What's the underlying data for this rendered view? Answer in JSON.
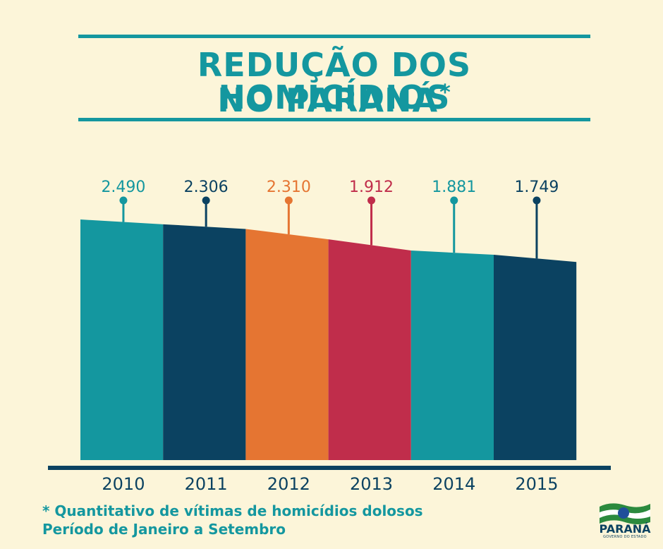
{
  "header": {
    "title_line1": "REDUÇÃO DOS HOMICÍDIOS",
    "title_line2": "NO PARANÁ",
    "title_marker": "*"
  },
  "chart_data": {
    "type": "bar",
    "title": "REDUÇÃO DOS HOMICÍDIOS NO PARANÁ*",
    "categories": [
      "2010",
      "2011",
      "2012",
      "2013",
      "2014",
      "2015"
    ],
    "values": [
      2490,
      2306,
      2310,
      1912,
      1881,
      1749
    ],
    "value_labels": [
      "2.490",
      "2.306",
      "2.310",
      "1.912",
      "1.881",
      "1.749"
    ],
    "colors": [
      "#14979f",
      "#0b4261",
      "#e57532",
      "#c02d4b",
      "#14979f",
      "#0b4261"
    ],
    "ylim": [
      0,
      3000
    ],
    "xlabel": "",
    "ylabel": "",
    "grid": false,
    "legend": "none"
  },
  "footnote": {
    "line1": "* Quantitativo de vítimas de homicídios dolosos",
    "line2": "Período de Janeiro a Setembro"
  },
  "logo": {
    "name": "PARANÁ",
    "subtitle": "GOVERNO DO ESTADO"
  }
}
